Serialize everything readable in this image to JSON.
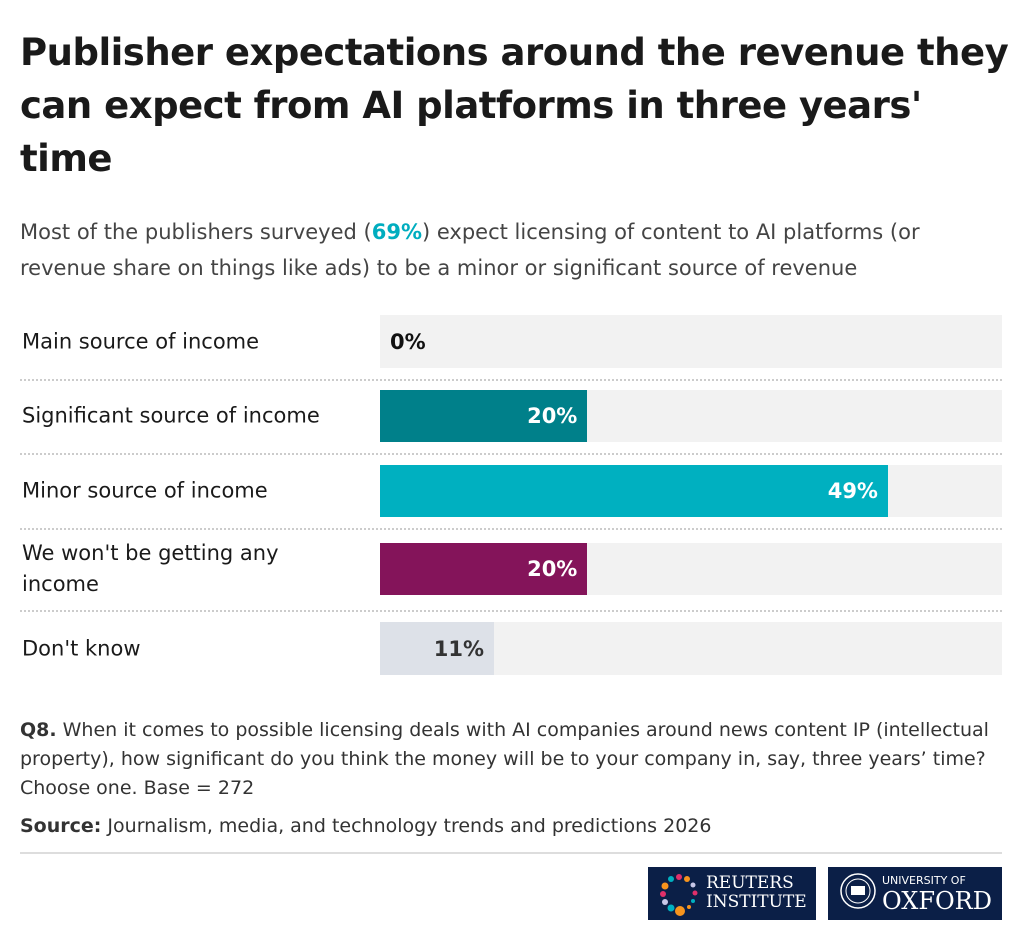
{
  "title": "Publisher expectations around the revenue they can expect from AI platforms in three years' time",
  "subtitle": {
    "pre": "Most of the publishers surveyed (",
    "highlight": "69%",
    "post": ") expect licensing of content to AI platforms (or revenue share on things like ads) to be a minor or significant source of revenue"
  },
  "chart_data": {
    "type": "bar",
    "orientation": "horizontal",
    "xlim": [
      0,
      60
    ],
    "categories": [
      "Main source of income",
      "Significant source of income",
      "Minor source of income",
      "We won't be getting any income",
      "Don't know"
    ],
    "values": [
      0,
      20,
      49,
      20,
      11
    ],
    "labels": [
      "0%",
      "20%",
      "49%",
      "20%",
      "11%"
    ],
    "colors": [
      "#00808a",
      "#00808a",
      "#00b0c0",
      "#84145a",
      "#dde1e8"
    ]
  },
  "note": {
    "bold": "Q8.",
    "text": " When it comes to possible licensing deals with AI companies around news content IP (intellectual property), how significant do you think the money will be to your company in, say, three years’ time? Choose one. Base = 272"
  },
  "source": {
    "bold": "Source:",
    "text": " Journalism, media, and technology trends and predictions 2026"
  },
  "logos": {
    "reuters": [
      "REUTERS",
      "INSTITUTE"
    ],
    "oxford": [
      "UNIVERSITY OF",
      "OXFORD"
    ]
  }
}
